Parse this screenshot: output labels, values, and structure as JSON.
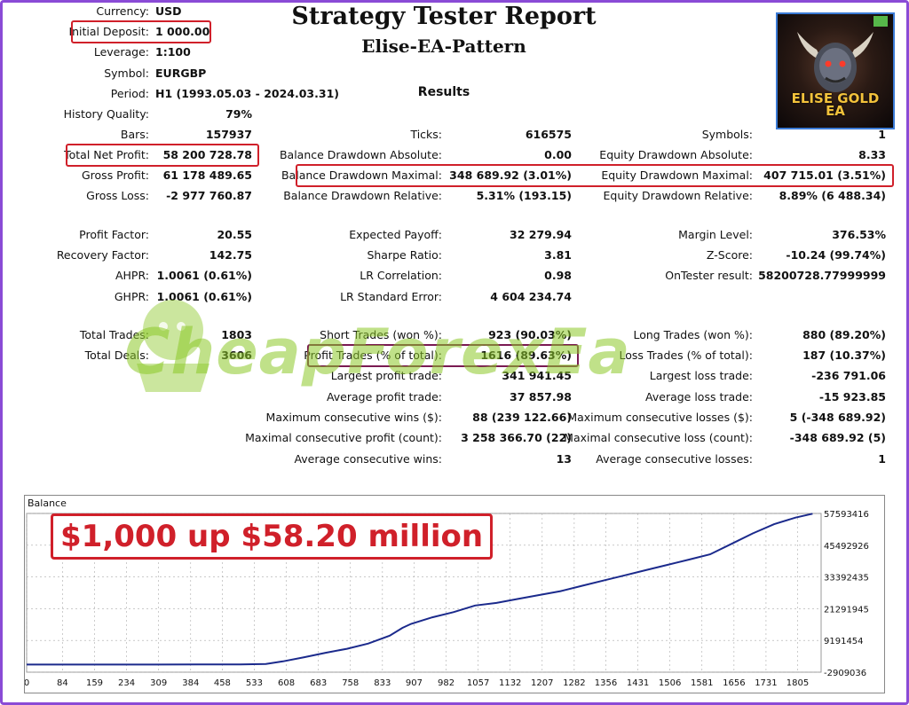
{
  "header": {
    "title": "Strategy Tester Report",
    "subtitle": "Elise-EA-Pattern",
    "results": "Results"
  },
  "settings": [
    {
      "label": "Currency:",
      "value": "USD"
    },
    {
      "label": "Initial Deposit:",
      "value": "1 000.00"
    },
    {
      "label": "Leverage:",
      "value": "1:100"
    },
    {
      "label": "Symbol:",
      "value": "EURGBP"
    },
    {
      "label": "Period:",
      "value": "H1 (1993.05.03 - 2024.03.31)"
    }
  ],
  "col1": [
    {
      "label": "History Quality:",
      "value": "79%"
    },
    {
      "label": "Bars:",
      "value": "157937"
    },
    {
      "label": "Total Net Profit:",
      "value": "58 200 728.78"
    },
    {
      "label": "Gross Profit:",
      "value": "61 178 489.65"
    },
    {
      "label": "Gross Loss:",
      "value": "-2 977 760.87"
    },
    {
      "label": "Profit Factor:",
      "value": "20.55"
    },
    {
      "label": "Recovery Factor:",
      "value": "142.75"
    },
    {
      "label": "AHPR:",
      "value": "1.0061 (0.61%)"
    },
    {
      "label": "GHPR:",
      "value": "1.0061 (0.61%)"
    },
    {
      "label": "Total Trades:",
      "value": "1803"
    },
    {
      "label": "Total Deals:",
      "value": "3606"
    }
  ],
  "col2": [
    {
      "label": "Ticks:",
      "value": "616575"
    },
    {
      "label": "Balance Drawdown Absolute:",
      "value": "0.00"
    },
    {
      "label": "Balance Drawdown Maximal:",
      "value": "348 689.92 (3.01%)"
    },
    {
      "label": "Balance Drawdown Relative:",
      "value": "5.31% (193.15)"
    },
    {
      "label": "Expected Payoff:",
      "value": "32 279.94"
    },
    {
      "label": "Sharpe Ratio:",
      "value": "3.81"
    },
    {
      "label": "LR Correlation:",
      "value": "0.98"
    },
    {
      "label": "LR Standard Error:",
      "value": "4 604 234.74"
    },
    {
      "label": "Short Trades (won %):",
      "value": "923 (90.03%)"
    },
    {
      "label": "Profit Trades (% of total):",
      "value": "1616 (89.63%)"
    },
    {
      "label": "Largest profit trade:",
      "value": "341 941.45"
    },
    {
      "label": "Average profit trade:",
      "value": "37 857.98"
    },
    {
      "label": "Maximum consecutive wins ($):",
      "value": "88 (239 122.66)"
    },
    {
      "label": "Maximal consecutive profit (count):",
      "value": "3 258 366.70 (22)"
    },
    {
      "label": "Average consecutive wins:",
      "value": "13"
    }
  ],
  "col3": [
    {
      "label": "Symbols:",
      "value": "1"
    },
    {
      "label": "Equity Drawdown Absolute:",
      "value": "8.33"
    },
    {
      "label": "Equity Drawdown Maximal:",
      "value": "407 715.01 (3.51%)"
    },
    {
      "label": "Equity Drawdown Relative:",
      "value": "8.89% (6 488.34)"
    },
    {
      "label": "Margin Level:",
      "value": "376.53%"
    },
    {
      "label": "Z-Score:",
      "value": "-10.24 (99.74%)"
    },
    {
      "label": "OnTester result:",
      "value": "58200728.77999999"
    },
    {
      "label": "Long Trades (won %):",
      "value": "880 (89.20%)"
    },
    {
      "label": "Loss Trades (% of total):",
      "value": "187 (10.37%)"
    },
    {
      "label": "Largest loss trade:",
      "value": "-236 791.06"
    },
    {
      "label": "Average loss trade:",
      "value": "-15 923.85"
    },
    {
      "label": "Maximum consecutive losses ($):",
      "value": "5 (-348 689.92)"
    },
    {
      "label": "Maximal consecutive loss (count):",
      "value": "-348 689.92 (5)"
    },
    {
      "label": "Average consecutive losses:",
      "value": "1"
    }
  ],
  "logo": {
    "line1": "ELISE GOLD",
    "line2": "EA"
  },
  "watermark": "CheapForexEa",
  "banner": "$1,000 up $58.20 million",
  "chart_data": {
    "type": "line",
    "title": "Balance",
    "x_ticks": [
      0,
      84,
      159,
      234,
      309,
      384,
      458,
      533,
      608,
      683,
      758,
      833,
      907,
      982,
      1057,
      1132,
      1207,
      1282,
      1356,
      1431,
      1506,
      1581,
      1656,
      1731,
      1805
    ],
    "y_ticks": [
      57593416,
      45492926,
      33392435,
      21291945,
      9191454,
      -2909036
    ],
    "xlim": [
      0,
      1860
    ],
    "ylim": [
      -2909036,
      57593416
    ],
    "grid": true,
    "line_color": "#1b2a8c",
    "series": [
      {
        "x": [
          0,
          100,
          200,
          300,
          400,
          500,
          560,
          600,
          650,
          700,
          750,
          800,
          850,
          880,
          900,
          950,
          1000,
          1050,
          1100,
          1150,
          1200,
          1250,
          1300,
          1350,
          1400,
          1450,
          1500,
          1550,
          1600,
          1650,
          1700,
          1750,
          1800,
          1840
        ],
        "y": [
          1000,
          1000,
          6000,
          10000,
          15000,
          60000,
          200000,
          1200000,
          2800000,
          4500000,
          6000000,
          8000000,
          11000000,
          14000000,
          15500000,
          18000000,
          20000000,
          22500000,
          23500000,
          25000000,
          26500000,
          28000000,
          30000000,
          32000000,
          34000000,
          36000000,
          38000000,
          40000000,
          42000000,
          46000000,
          50000000,
          53500000,
          56000000,
          57500000
        ]
      }
    ]
  }
}
